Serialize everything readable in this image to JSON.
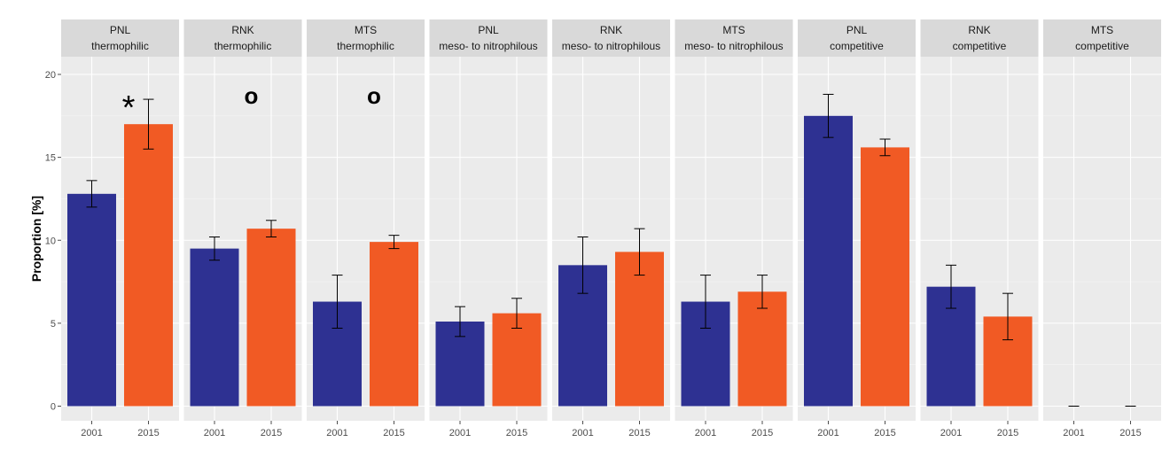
{
  "chart_data": {
    "type": "bar",
    "ylabel": "Proportion [%]",
    "ylim": [
      0,
      21
    ],
    "y_ticks": [
      0,
      5,
      10,
      15,
      20
    ],
    "y_tick_labels": [
      "0",
      "5",
      "10",
      "15",
      "20"
    ],
    "categories": [
      "2001",
      "2015"
    ],
    "colors": {
      "2001": "#2e3192",
      "2015": "#f15a24"
    },
    "grid": true,
    "panel_background": "#ebebeb",
    "strip_background": "#d9d9d9",
    "facets": [
      {
        "line1": "PNL",
        "line2": "thermophilic",
        "values": [
          12.8,
          17.0
        ],
        "errors": [
          0.8,
          1.5
        ],
        "annotation": "*"
      },
      {
        "line1": "RNK",
        "line2": "thermophilic",
        "values": [
          9.5,
          10.7
        ],
        "errors": [
          0.7,
          0.5
        ],
        "annotation": "o"
      },
      {
        "line1": "MTS",
        "line2": "thermophilic",
        "values": [
          6.3,
          9.9
        ],
        "errors": [
          1.6,
          0.4
        ],
        "annotation": "o"
      },
      {
        "line1": "PNL",
        "line2": "meso- to nitrophilous",
        "values": [
          5.1,
          5.6
        ],
        "errors": [
          0.9,
          0.9
        ],
        "annotation": ""
      },
      {
        "line1": "RNK",
        "line2": "meso- to nitrophilous",
        "values": [
          8.5,
          9.3
        ],
        "errors": [
          1.7,
          1.4
        ],
        "annotation": ""
      },
      {
        "line1": "MTS",
        "line2": "meso- to nitrophilous",
        "values": [
          6.3,
          6.9
        ],
        "errors": [
          1.6,
          1.0
        ],
        "annotation": ""
      },
      {
        "line1": "PNL",
        "line2": "competitive",
        "values": [
          17.5,
          15.6
        ],
        "errors": [
          1.3,
          0.5
        ],
        "annotation": ""
      },
      {
        "line1": "RNK",
        "line2": "competitive",
        "values": [
          7.2,
          5.4
        ],
        "errors": [
          1.3,
          1.4
        ],
        "annotation": ""
      },
      {
        "line1": "MTS",
        "line2": "competitive",
        "values": [
          0.0,
          0.0
        ],
        "errors": [
          0.0,
          0.0
        ],
        "annotation": ""
      }
    ]
  }
}
